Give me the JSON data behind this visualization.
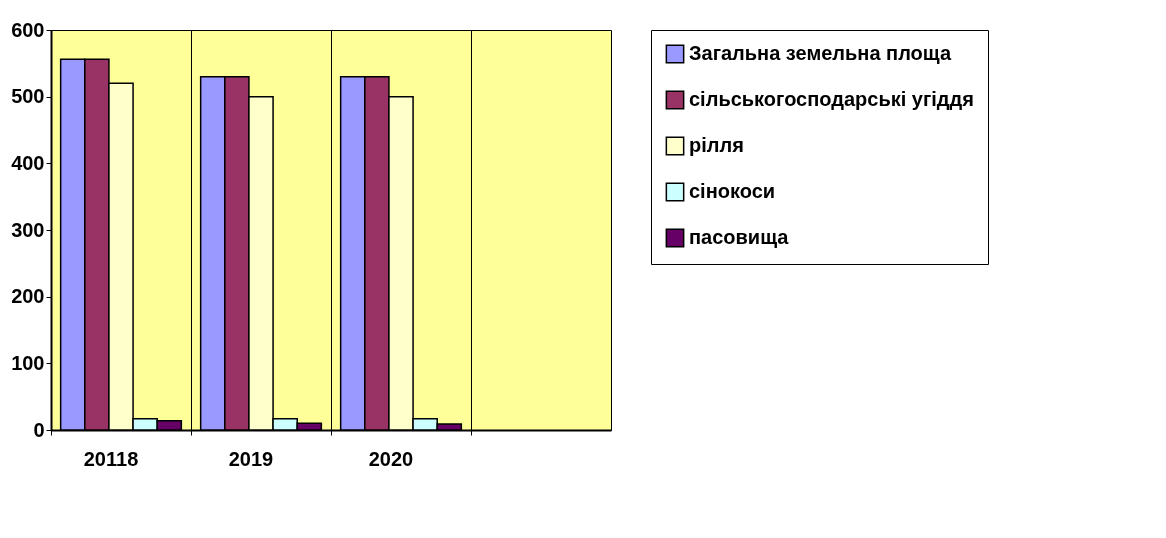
{
  "chart_data": {
    "type": "bar",
    "categories": [
      "20118",
      "2019",
      "2020",
      null
    ],
    "series": [
      {
        "name": "Загальна земельна площа",
        "color": "#9999ff",
        "values": [
          556,
          530,
          530,
          null
        ]
      },
      {
        "name": "сільськогосподарські угіддя",
        "color": "#993366",
        "values": [
          556,
          530,
          530,
          null
        ]
      },
      {
        "name": "рілля",
        "color": "#ffffcc",
        "values": [
          520,
          500,
          500,
          null
        ]
      },
      {
        "name": "сінокоси",
        "color": "#ccffff",
        "values": [
          17,
          17,
          17,
          null
        ]
      },
      {
        "name": "пасовища",
        "color": "#660066",
        "values": [
          14,
          10,
          9,
          null
        ]
      }
    ],
    "ylim": [
      0,
      600
    ],
    "yticks": [
      0,
      100,
      200,
      300,
      400,
      500,
      600
    ],
    "grid": "x",
    "legend": "right"
  }
}
